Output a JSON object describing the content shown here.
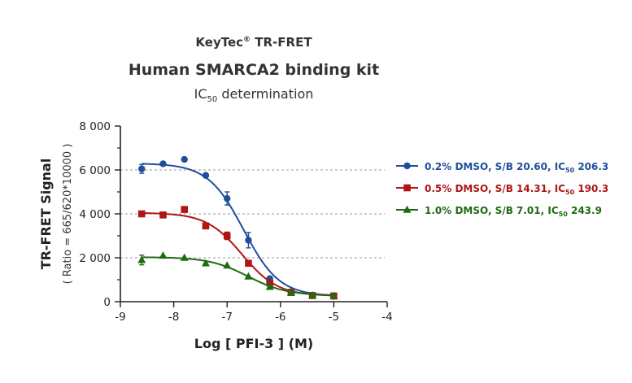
{
  "chart_data": {
    "type": "scatter",
    "title_brand": "KeyTec",
    "title_brand_mark": "®",
    "title_brand_rest": " TR-FRET",
    "title": "Human SMARCA2 binding kit",
    "subtitle_main": "IC",
    "subtitle_sub": "50",
    "subtitle_rest": " determination",
    "xlabel": "Log [ PFI-3 ]  (M)",
    "ylabel": "TR-FRET Signal",
    "ylabel2": "( Ratio = 665/620*10000 )",
    "xlim": [
      -9,
      -4
    ],
    "ylim": [
      0,
      8000
    ],
    "xticks": [
      -9,
      -8,
      -7,
      -6,
      -5,
      -4
    ],
    "xtick_labels": [
      "-9",
      "-8",
      "-7",
      "-6",
      "-5",
      "-4"
    ],
    "yticks": [
      0,
      2000,
      4000,
      6000,
      8000
    ],
    "ytick_labels": [
      "0",
      "2 000",
      "4 000",
      "6 000",
      "8 000"
    ],
    "grid": "dashed horizontal lines at 2000, 4000, 6000",
    "legend_position": "right",
    "series": [
      {
        "name": "0.2% DMSO, S/B 20.60, IC50 206.3",
        "legend_pre": "0.2% DMSO, S/B 20.60, IC",
        "legend_sub": "50",
        "legend_post": " 206.3",
        "color": "#1f4e9a",
        "marker": "circle",
        "x": [
          -8.6,
          -8.2,
          -7.8,
          -7.4,
          -7.0,
          -6.6,
          -6.2,
          -5.8,
          -5.4,
          -5.0
        ],
        "y": [
          6050,
          6280,
          6480,
          5750,
          4700,
          2800,
          1050,
          450,
          280,
          250
        ],
        "err": [
          200,
          0,
          0,
          0,
          300,
          350,
          0,
          0,
          0,
          0
        ],
        "fit": {
          "top": 6300,
          "bottom": 250,
          "logec50": -6.69,
          "hill": 1.3
        }
      },
      {
        "name": "0.5% DMSO, S/B 14.31, IC50 190.3",
        "legend_pre": "0.5% DMSO, S/B 14.31, IC",
        "legend_sub": "50",
        "legend_post": " 190.3",
        "color": "#b01515",
        "marker": "square",
        "x": [
          -8.6,
          -8.2,
          -7.8,
          -7.4,
          -7.0,
          -6.6,
          -6.2,
          -5.8,
          -5.4,
          -5.0
        ],
        "y": [
          4000,
          3950,
          4200,
          3450,
          3000,
          1750,
          850,
          420,
          280,
          260
        ],
        "err": [
          120,
          0,
          0,
          0,
          170,
          0,
          0,
          0,
          0,
          0
        ],
        "fit": {
          "top": 4050,
          "bottom": 260,
          "logec50": -6.72,
          "hill": 1.3
        }
      },
      {
        "name": "1.0% DMSO, S/B 7.01, IC50 243.9",
        "legend_pre": "1.0% DMSO, S/B 7.01, IC",
        "legend_sub": "50",
        "legend_post": " 243.9",
        "color": "#1e6b12",
        "marker": "triangle",
        "x": [
          -8.6,
          -8.2,
          -7.8,
          -7.4,
          -7.0,
          -6.6,
          -6.2,
          -5.8,
          -5.4,
          -5.0
        ],
        "y": [
          1900,
          2100,
          2000,
          1750,
          1650,
          1150,
          680,
          420,
          290,
          270
        ],
        "err": [
          220,
          0,
          0,
          0,
          0,
          0,
          0,
          0,
          0,
          0
        ],
        "fit": {
          "top": 2030,
          "bottom": 280,
          "logec50": -6.61,
          "hill": 1.2
        }
      }
    ]
  }
}
